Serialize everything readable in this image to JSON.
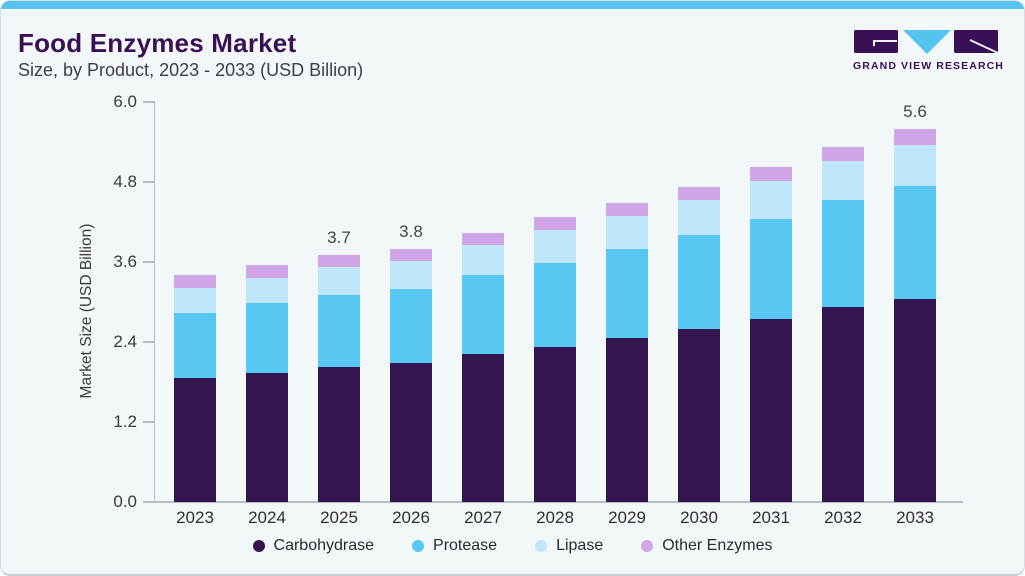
{
  "header": {
    "title": "Food Enzymes Market",
    "subtitle": "Size, by Product, 2023 - 2033 (USD Billion)"
  },
  "logo": {
    "text": "GRAND VIEW RESEARCH",
    "purple": "#3A1055",
    "cyan": "#56C3EE"
  },
  "colors": {
    "card_background": "#F2F7FA",
    "top_accent_bar": "#56C3EE",
    "axis": "#B6BCC6",
    "title_text": "#3A1055"
  },
  "chart_data": {
    "type": "bar",
    "stacked": true,
    "title": "Food Enzymes Market Size, by Product, 2023 - 2033 (USD Billion)",
    "xlabel": "",
    "ylabel": "Market Size (USD Billion)",
    "ylim": [
      0,
      6.0
    ],
    "yticks": [
      0.0,
      1.2,
      2.4,
      3.6,
      4.8,
      6.0
    ],
    "grid": false,
    "legend_position": "bottom",
    "categories": [
      "2023",
      "2024",
      "2025",
      "2026",
      "2027",
      "2028",
      "2029",
      "2030",
      "2031",
      "2032",
      "2033"
    ],
    "series": [
      {
        "name": "Carbohydrase",
        "color": "#351550",
        "values": [
          1.86,
          1.94,
          2.03,
          2.09,
          2.22,
          2.33,
          2.46,
          2.6,
          2.75,
          2.92,
          3.05
        ]
      },
      {
        "name": "Protease",
        "color": "#58C7F2",
        "values": [
          0.98,
          1.04,
          1.08,
          1.11,
          1.18,
          1.26,
          1.33,
          1.41,
          1.5,
          1.61,
          1.69
        ]
      },
      {
        "name": "Lipase",
        "color": "#BFE6F9",
        "values": [
          0.37,
          0.38,
          0.41,
          0.42,
          0.46,
          0.49,
          0.5,
          0.52,
          0.56,
          0.59,
          0.61
        ]
      },
      {
        "name": "Other Enzymes",
        "color": "#D1A6E9",
        "values": [
          0.19,
          0.2,
          0.18,
          0.18,
          0.18,
          0.19,
          0.2,
          0.2,
          0.21,
          0.21,
          0.25
        ]
      }
    ],
    "annotations": [
      {
        "category": "2025",
        "text": "3.7"
      },
      {
        "category": "2026",
        "text": "3.8"
      },
      {
        "category": "2033",
        "text": "5.6"
      }
    ]
  }
}
